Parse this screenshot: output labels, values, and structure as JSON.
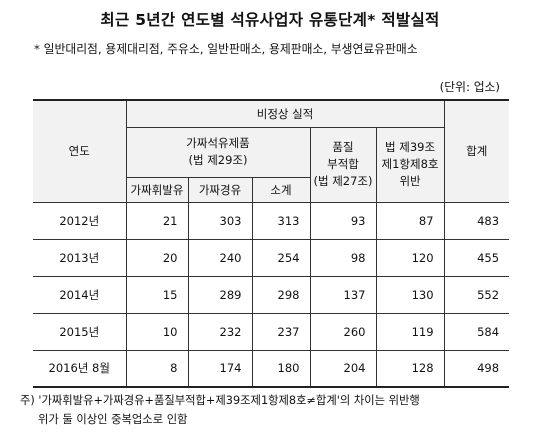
{
  "title": "최근 5년간 연도별 석유사업자 유통단계* 적발실적",
  "note": "* 일반대리점, 용제대리점, 주유소, 일반판매소, 용제판매소, 부생연료유판매소",
  "unit": "(단위: 업소)",
  "table": {
    "header_year": "연도",
    "header_group": "비정상 실적",
    "header_fake": [
      "가짜석유제품",
      "(법 제29조)"
    ],
    "header_quality": [
      "품질",
      "부적합",
      "(법 제27조)"
    ],
    "header_art39": [
      "법 제39조",
      "제1항제8호",
      "위반"
    ],
    "header_total": "합계",
    "header_sub": [
      "가짜휘발유",
      "가짜경유",
      "소계"
    ],
    "rows": [
      {
        "year": "2012년",
        "gasoline": "21",
        "diesel": "303",
        "subtotal": "313",
        "quality": "93",
        "art39": "87",
        "total": "483"
      },
      {
        "year": "2013년",
        "gasoline": "20",
        "diesel": "240",
        "subtotal": "254",
        "quality": "98",
        "art39": "120",
        "total": "455"
      },
      {
        "year": "2014년",
        "gasoline": "15",
        "diesel": "289",
        "subtotal": "298",
        "quality": "137",
        "art39": "130",
        "total": "552"
      },
      {
        "year": "2015년",
        "gasoline": "10",
        "diesel": "232",
        "subtotal": "237",
        "quality": "260",
        "art39": "119",
        "total": "584"
      },
      {
        "year": "2016년 8월",
        "gasoline": "8",
        "diesel": "174",
        "subtotal": "180",
        "quality": "204",
        "art39": "128",
        "total": "498"
      }
    ]
  },
  "footer": {
    "line1": "주) '가짜휘발유+가짜경유+품질부적합+제39조제1항제8호≠합계'의 차이는 위반행",
    "line2": "위가 둘 이상인 중복업소로 인함"
  }
}
